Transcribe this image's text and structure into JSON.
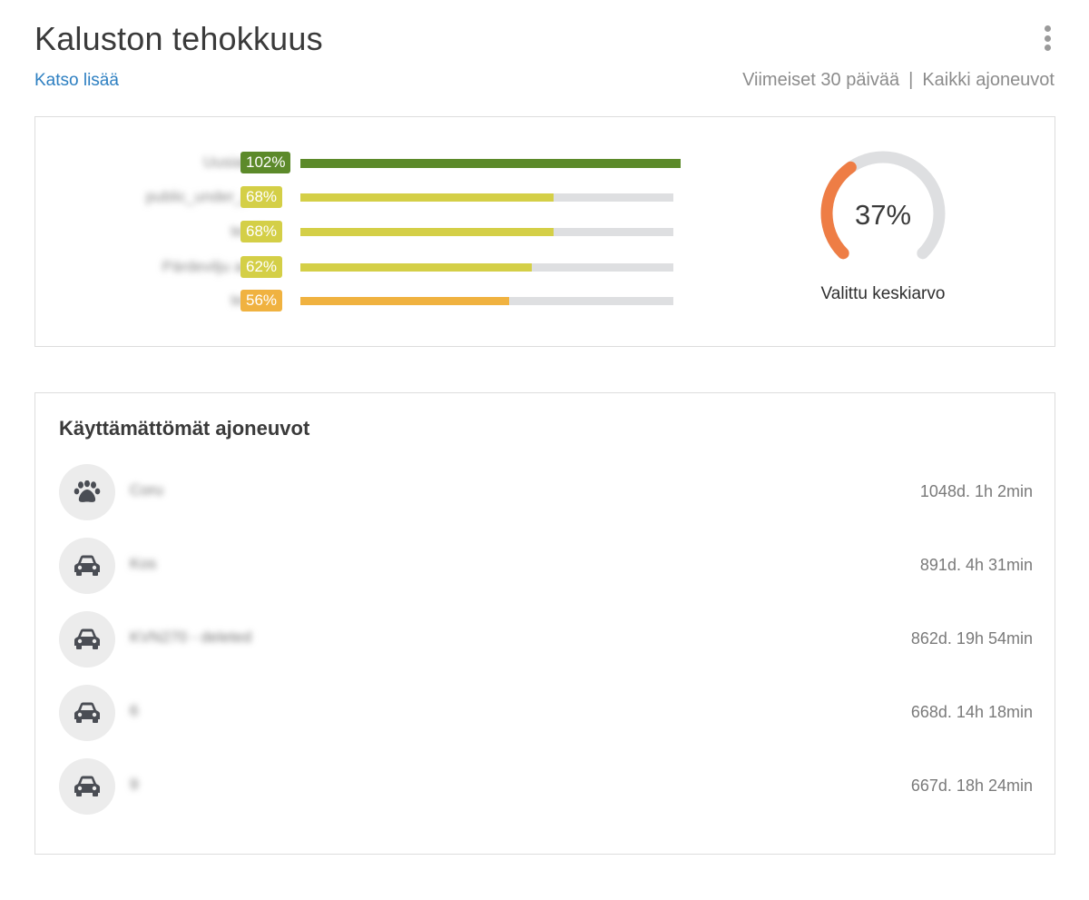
{
  "header": {
    "title": "Kaluston tehokkuus",
    "see_more": "Katso lisää",
    "period_filter": "Viimeiset 30 päivää",
    "separator": "|",
    "vehicle_filter": "Kaikki ajoneuvot"
  },
  "efficiency": {
    "bars": [
      {
        "label": "Uusiauto",
        "percent_label": "102%",
        "value": 102,
        "color": "#5c8a2a",
        "badge_color": "#5c8a2a"
      },
      {
        "label": "public_under_p...",
        "percent_label": "68%",
        "value": 68,
        "color": "#d4cf47",
        "badge_color": "#d4cf47"
      },
      {
        "label": "test3",
        "percent_label": "68%",
        "value": 68,
        "color": "#d4cf47",
        "badge_color": "#d4cf47"
      },
      {
        "label": "Pärdevilju auto",
        "percent_label": "62%",
        "value": 62,
        "color": "#d4cf47",
        "badge_color": "#d4cf47"
      },
      {
        "label": "test2",
        "percent_label": "56%",
        "value": 56,
        "color": "#f0b240",
        "badge_color": "#f0b240"
      }
    ],
    "gauge": {
      "value_label": "37%",
      "value": 37,
      "caption": "Valittu keskiarvo",
      "arc_color": "#ee7d45",
      "track_color": "#dedfe1"
    }
  },
  "idle_vehicles": {
    "title": "Käyttämättömät ajoneuvot",
    "items": [
      {
        "icon": "paw-icon",
        "name": "Coru",
        "duration": "1048d. 1h 2min"
      },
      {
        "icon": "car-icon",
        "name": "Kos",
        "duration": "891d. 4h 31min"
      },
      {
        "icon": "car-icon",
        "name": "KVN270 - deleted",
        "duration": "862d. 19h 54min"
      },
      {
        "icon": "car-icon",
        "name": "6",
        "duration": "668d. 14h 18min"
      },
      {
        "icon": "car-icon",
        "name": "9",
        "duration": "667d. 18h 24min"
      }
    ]
  }
}
